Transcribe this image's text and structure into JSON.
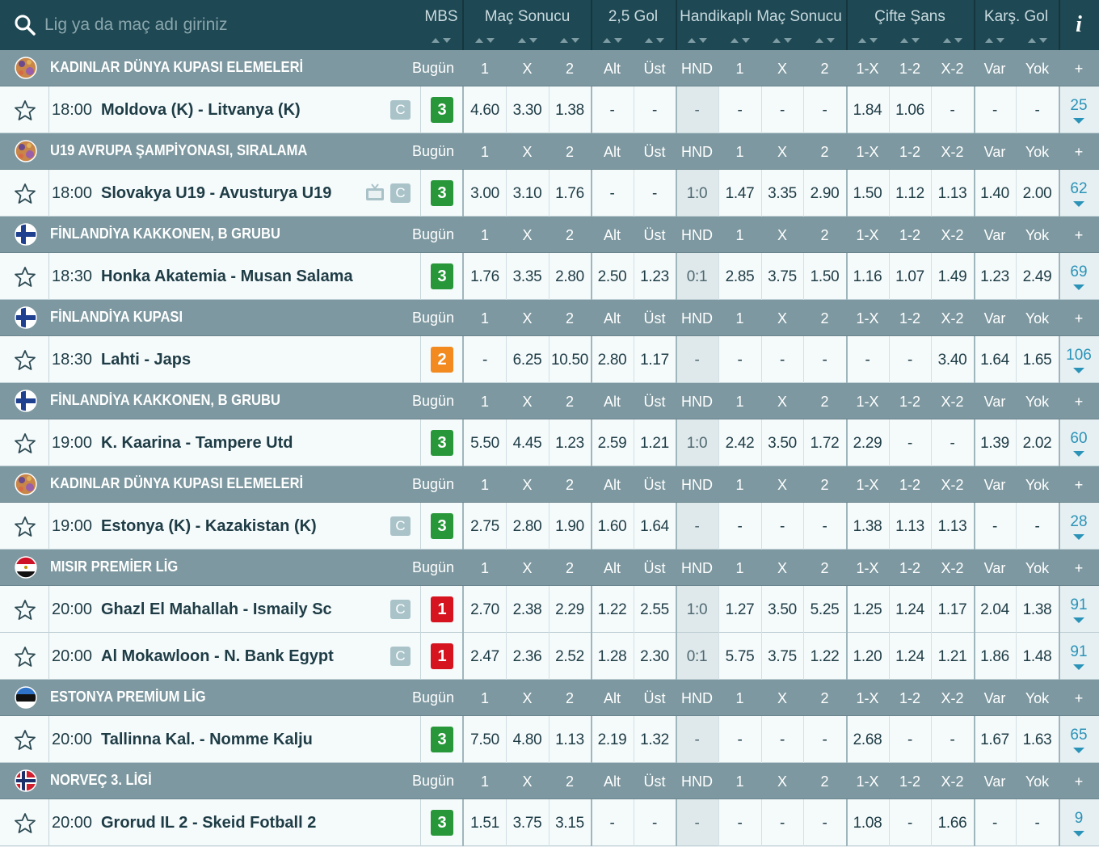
{
  "header": {
    "search_placeholder": "Lig ya da maç adı giriniz",
    "columns": [
      "MBS",
      "Maç Sonucu",
      "2,5 Gol",
      "Handikaplı Maç Sonucu",
      "Çifte Şans",
      "Karş. Gol",
      "i"
    ]
  },
  "odds_columns": [
    "1",
    "X",
    "2",
    "Alt",
    "Üst",
    "HND",
    "1",
    "X",
    "2",
    "1-X",
    "1-2",
    "X-2",
    "Var",
    "Yok",
    "+"
  ],
  "leagues": [
    {
      "name": "KADINLAR DÜNYA KUPASI ELEMELERİ",
      "day": "Bugün",
      "flag": "world",
      "matches": [
        {
          "time": "18:00",
          "teams": "Moldova (K) - Litvanya (K)",
          "badge": "C",
          "mbs": 3,
          "odds": [
            "4.60",
            "3.30",
            "1.38",
            "-",
            "-",
            "-",
            "-",
            "-",
            "-",
            "1.84",
            "1.06",
            "-",
            "-",
            "-"
          ],
          "more": 25
        }
      ]
    },
    {
      "name": "U19 AVRUPA ŞAMPİYONASI, SIRALAMA",
      "day": "Bugün",
      "flag": "world",
      "matches": [
        {
          "time": "18:00",
          "teams": "Slovakya U19 - Avusturya U19",
          "tv": true,
          "badge": "C",
          "mbs": 3,
          "odds": [
            "3.00",
            "3.10",
            "1.76",
            "-",
            "-",
            "1:0",
            "1.47",
            "3.35",
            "2.90",
            "1.50",
            "1.12",
            "1.13",
            "1.40",
            "2.00"
          ],
          "more": 62
        }
      ]
    },
    {
      "name": "FİNLANDİYA KAKKONEN, B GRUBU",
      "day": "Bugün",
      "flag": "finland",
      "matches": [
        {
          "time": "18:30",
          "teams": "Honka Akatemia - Musan Salama",
          "mbs": 3,
          "odds": [
            "1.76",
            "3.35",
            "2.80",
            "2.50",
            "1.23",
            "0:1",
            "2.85",
            "3.75",
            "1.50",
            "1.16",
            "1.07",
            "1.49",
            "1.23",
            "2.49"
          ],
          "more": 69
        }
      ]
    },
    {
      "name": "FİNLANDİYA KUPASI",
      "day": "Bugün",
      "flag": "finland",
      "matches": [
        {
          "time": "18:30",
          "teams": "Lahti - Japs",
          "mbs": 2,
          "odds": [
            "-",
            "6.25",
            "10.50",
            "2.80",
            "1.17",
            "-",
            "-",
            "-",
            "-",
            "-",
            "-",
            "3.40",
            "1.64",
            "1.65"
          ],
          "more": 106
        }
      ]
    },
    {
      "name": "FİNLANDİYA KAKKONEN, B GRUBU",
      "day": "Bugün",
      "flag": "finland",
      "matches": [
        {
          "time": "19:00",
          "teams": "K. Kaarina - Tampere Utd",
          "mbs": 3,
          "odds": [
            "5.50",
            "4.45",
            "1.23",
            "2.59",
            "1.21",
            "1:0",
            "2.42",
            "3.50",
            "1.72",
            "2.29",
            "-",
            "-",
            "1.39",
            "2.02"
          ],
          "more": 60
        }
      ]
    },
    {
      "name": "KADINLAR DÜNYA KUPASI ELEMELERİ",
      "day": "Bugün",
      "flag": "world",
      "matches": [
        {
          "time": "19:00",
          "teams": "Estonya (K) - Kazakistan (K)",
          "badge": "C",
          "mbs": 3,
          "odds": [
            "2.75",
            "2.80",
            "1.90",
            "1.60",
            "1.64",
            "-",
            "-",
            "-",
            "-",
            "1.38",
            "1.13",
            "1.13",
            "-",
            "-"
          ],
          "more": 28
        }
      ]
    },
    {
      "name": "MISIR PREMİER LİG",
      "day": "Bugün",
      "flag": "egypt",
      "matches": [
        {
          "time": "20:00",
          "teams": "Ghazl El Mahallah - Ismaily Sc",
          "badge": "C",
          "mbs": 1,
          "odds": [
            "2.70",
            "2.38",
            "2.29",
            "1.22",
            "2.55",
            "1:0",
            "1.27",
            "3.50",
            "5.25",
            "1.25",
            "1.24",
            "1.17",
            "2.04",
            "1.38"
          ],
          "more": 91
        },
        {
          "time": "20:00",
          "teams": "Al Mokawloon - N. Bank Egypt",
          "badge": "C",
          "mbs": 1,
          "odds": [
            "2.47",
            "2.36",
            "2.52",
            "1.28",
            "2.30",
            "0:1",
            "5.75",
            "3.75",
            "1.22",
            "1.20",
            "1.24",
            "1.21",
            "1.86",
            "1.48"
          ],
          "more": 91
        }
      ]
    },
    {
      "name": "ESTONYA PREMİUM LİG",
      "day": "Bugün",
      "flag": "estonia",
      "matches": [
        {
          "time": "20:00",
          "teams": "Tallinna Kal. - Nomme Kalju",
          "mbs": 3,
          "odds": [
            "7.50",
            "4.80",
            "1.13",
            "2.19",
            "1.32",
            "-",
            "-",
            "-",
            "-",
            "2.68",
            "-",
            "-",
            "1.67",
            "1.63"
          ],
          "more": 65
        }
      ]
    },
    {
      "name": "NORVEÇ 3. LİGİ",
      "day": "Bugün",
      "flag": "norway",
      "matches": [
        {
          "time": "20:00",
          "teams": "Grorud IL 2 - Skeid Fotball 2",
          "mbs": 3,
          "odds": [
            "1.51",
            "3.75",
            "3.15",
            "-",
            "-",
            "-",
            "-",
            "-",
            "-",
            "1.08",
            "-",
            "1.66",
            "-",
            "-"
          ],
          "more": 9
        }
      ]
    }
  ]
}
